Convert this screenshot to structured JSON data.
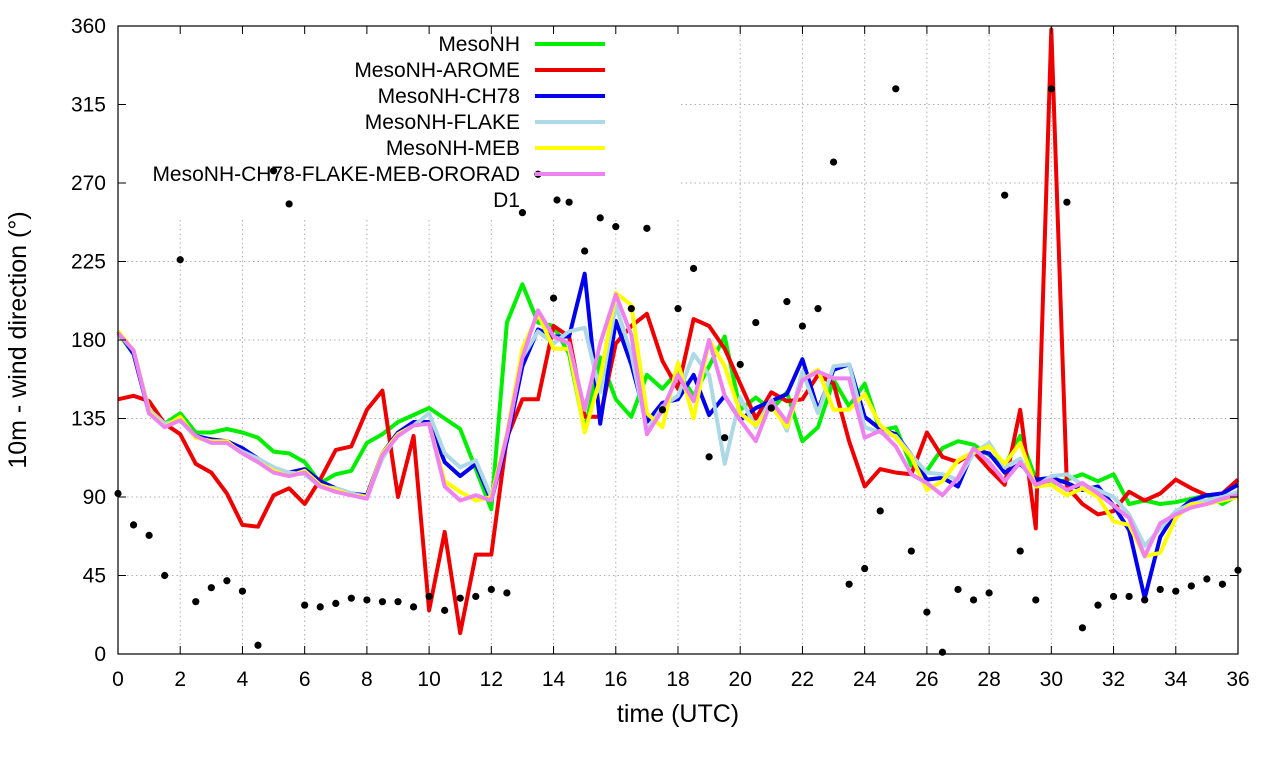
{
  "chart_data": {
    "type": "line",
    "title": "",
    "xlabel": "time (UTC)",
    "ylabel": "10m - wind direction (°)",
    "xlim": [
      0,
      36
    ],
    "ylim": [
      0,
      360
    ],
    "xticks": [
      0,
      2,
      4,
      6,
      8,
      10,
      12,
      14,
      16,
      18,
      20,
      22,
      24,
      26,
      28,
      30,
      32,
      34,
      36
    ],
    "yticks": [
      0,
      45,
      90,
      135,
      180,
      225,
      270,
      315,
      360
    ],
    "grid": true,
    "legend_position": "top-center",
    "x": [
      0,
      0.5,
      1,
      1.5,
      2,
      2.5,
      3,
      3.5,
      4,
      4.5,
      5,
      5.5,
      6,
      6.5,
      7,
      7.5,
      8,
      8.5,
      9,
      9.5,
      10,
      10.5,
      11,
      11.5,
      12,
      12.5,
      13,
      13.5,
      14,
      14.5,
      15,
      15.5,
      16,
      16.5,
      17,
      17.5,
      18,
      18.5,
      19,
      19.5,
      20,
      20.5,
      21,
      21.5,
      22,
      22.5,
      23,
      23.5,
      24,
      24.5,
      25,
      25.5,
      26,
      26.5,
      27,
      27.5,
      28,
      28.5,
      29,
      29.5,
      30,
      30.5,
      31,
      31.5,
      32,
      32.5,
      33,
      33.5,
      34,
      34.5,
      35,
      35.5,
      36
    ],
    "series": [
      {
        "name": "MesoNH",
        "color": "#00ee00",
        "style": "line",
        "values": [
          184,
          172,
          140,
          132,
          138,
          127,
          127,
          129,
          127,
          124,
          116,
          115,
          110,
          98,
          103,
          105,
          121,
          126,
          133,
          137,
          141,
          135,
          129,
          106,
          83,
          190,
          212,
          190,
          188,
          172,
          128,
          170,
          146,
          136,
          160,
          152,
          162,
          148,
          165,
          182,
          140,
          147,
          140,
          150,
          122,
          130,
          157,
          142,
          155,
          128,
          130,
          108,
          105,
          118,
          122,
          120,
          114,
          108,
          125,
          100,
          97,
          100,
          103,
          99,
          103,
          86,
          88,
          86,
          87,
          89,
          91,
          86,
          91
        ]
      },
      {
        "name": "MesoNH-AROME",
        "color": "#ee0000",
        "style": "line",
        "values": [
          146,
          148,
          145,
          132,
          126,
          109,
          104,
          92,
          74,
          73,
          91,
          95,
          86,
          100,
          117,
          119,
          140,
          151,
          90,
          125,
          25,
          70,
          12,
          57,
          57,
          124,
          146,
          146,
          188,
          182,
          136,
          136,
          178,
          188,
          195,
          168,
          152,
          192,
          188,
          175,
          155,
          135,
          150,
          145,
          146,
          160,
          155,
          122,
          96,
          106,
          104,
          103,
          127,
          113,
          110,
          116,
          106,
          97,
          140,
          72,
          358,
          96,
          86,
          80,
          82,
          93,
          88,
          92,
          100,
          95,
          91,
          92,
          100
        ]
      },
      {
        "name": "MesoNH-CH78",
        "color": "#0000ee",
        "style": "line",
        "values": [
          185,
          172,
          138,
          131,
          134,
          125,
          123,
          122,
          118,
          112,
          106,
          104,
          106,
          99,
          95,
          92,
          91,
          115,
          127,
          133,
          133,
          110,
          102,
          109,
          88,
          122,
          165,
          186,
          182,
          182,
          218,
          132,
          191,
          166,
          133,
          144,
          146,
          160,
          137,
          148,
          134,
          141,
          145,
          149,
          169,
          140,
          163,
          166,
          136,
          129,
          126,
          114,
          100,
          101,
          96,
          117,
          115,
          104,
          109,
          100,
          101,
          98,
          94,
          96,
          85,
          71,
          32,
          67,
          81,
          88,
          91,
          92,
          97
        ]
      },
      {
        "name": "MesoNH-FLAKE",
        "color": "#add8e6",
        "style": "line",
        "values": [
          184,
          174,
          140,
          132,
          134,
          124,
          122,
          121,
          116,
          112,
          107,
          104,
          103,
          96,
          95,
          92,
          90,
          112,
          126,
          131,
          138,
          115,
          107,
          111,
          90,
          125,
          170,
          185,
          178,
          185,
          187,
          150,
          200,
          172,
          128,
          142,
          148,
          172,
          160,
          109,
          147,
          130,
          146,
          128,
          162,
          138,
          165,
          166,
          130,
          127,
          125,
          114,
          104,
          103,
          100,
          115,
          121,
          107,
          112,
          96,
          102,
          103,
          97,
          94,
          90,
          80,
          62,
          72,
          82,
          86,
          88,
          90,
          93
        ]
      },
      {
        "name": "MesoNH-MEB",
        "color": "#ffff00",
        "style": "line",
        "values": [
          185,
          174,
          139,
          130,
          136,
          124,
          122,
          122,
          115,
          110,
          105,
          102,
          105,
          97,
          94,
          91,
          90,
          115,
          126,
          131,
          132,
          99,
          93,
          88,
          90,
          126,
          175,
          195,
          175,
          175,
          127,
          158,
          207,
          200,
          138,
          130,
          167,
          135,
          180,
          165,
          138,
          131,
          142,
          130,
          157,
          163,
          140,
          140,
          149,
          131,
          124,
          113,
          94,
          99,
          111,
          116,
          119,
          109,
          121,
          96,
          97,
          91,
          95,
          90,
          76,
          74,
          56,
          58,
          78,
          86,
          86,
          88,
          90
        ]
      },
      {
        "name": "MesoNH-CH78-FLAKE-MEB-ORORAD",
        "color": "#ee82ee",
        "style": "line",
        "values": [
          184,
          174,
          138,
          130,
          134,
          125,
          121,
          121,
          115,
          110,
          104,
          102,
          104,
          96,
          93,
          91,
          89,
          114,
          125,
          131,
          132,
          96,
          88,
          91,
          88,
          125,
          170,
          197,
          182,
          178,
          140,
          178,
          206,
          183,
          126,
          140,
          160,
          145,
          180,
          148,
          134,
          122,
          145,
          133,
          157,
          162,
          158,
          158,
          124,
          128,
          119,
          103,
          98,
          91,
          101,
          118,
          110,
          99,
          110,
          97,
          100,
          94,
          98,
          92,
          85,
          78,
          56,
          75,
          80,
          84,
          86,
          89,
          91
        ]
      },
      {
        "name": "D1",
        "color": "#000000",
        "style": "points",
        "values": [
          92,
          74,
          68,
          45,
          226,
          30,
          38,
          42,
          36,
          5,
          277,
          258,
          28,
          27,
          29,
          32,
          31,
          30,
          30,
          27,
          33,
          25,
          32,
          33,
          37,
          35,
          253,
          275,
          204,
          259,
          231,
          250,
          245,
          198,
          244,
          140,
          198,
          221,
          113,
          124,
          166,
          190,
          141,
          202,
          188,
          198,
          282,
          40,
          49,
          82,
          324,
          59,
          24,
          1,
          37,
          31,
          35,
          263,
          59,
          31,
          324,
          259,
          15,
          28,
          33,
          33,
          31,
          37,
          36,
          39,
          43,
          40,
          48
        ]
      }
    ]
  }
}
